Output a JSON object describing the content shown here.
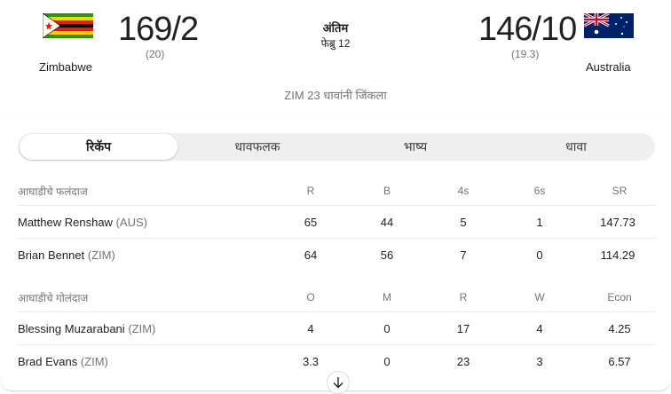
{
  "match": {
    "home": {
      "name": "Zimbabwe",
      "score": "169/2",
      "overs": "(20)",
      "flag": "zimbabwe-flag"
    },
    "away": {
      "name": "Australia",
      "score": "146/10",
      "overs": "(19.3)",
      "flag": "australia-flag"
    },
    "status": "अंतिम",
    "date": "फेब्रु 12",
    "result": "ZIM 23 धावांनी जिंकला"
  },
  "tabs": [
    {
      "label": "रिकॅप",
      "active": true
    },
    {
      "label": "धावफलक"
    },
    {
      "label": "भाष्य"
    },
    {
      "label": "धावा"
    }
  ],
  "batting": {
    "title": "आघाडीचे फलंदाज",
    "columns": [
      "R",
      "B",
      "4s",
      "6s",
      "SR"
    ],
    "rows": [
      {
        "name": "Matthew Renshaw",
        "team": "(AUS)",
        "values": [
          "65",
          "44",
          "5",
          "1",
          "147.73"
        ]
      },
      {
        "name": "Brian Bennet",
        "team": "(ZIM)",
        "values": [
          "64",
          "56",
          "7",
          "0",
          "114.29"
        ]
      }
    ]
  },
  "bowling": {
    "title": "आघाडीचे गोलंदाज",
    "columns": [
      "O",
      "M",
      "R",
      "W",
      "Econ"
    ],
    "rows": [
      {
        "name": "Blessing Muzarabani",
        "team": "(ZIM)",
        "values": [
          "4",
          "0",
          "17",
          "4",
          "4.25"
        ]
      },
      {
        "name": "Brad Evans",
        "team": "(ZIM)",
        "values": [
          "3.3",
          "0",
          "23",
          "3",
          "6.57"
        ]
      }
    ]
  },
  "icons": {
    "expand": "arrow-down-icon"
  }
}
